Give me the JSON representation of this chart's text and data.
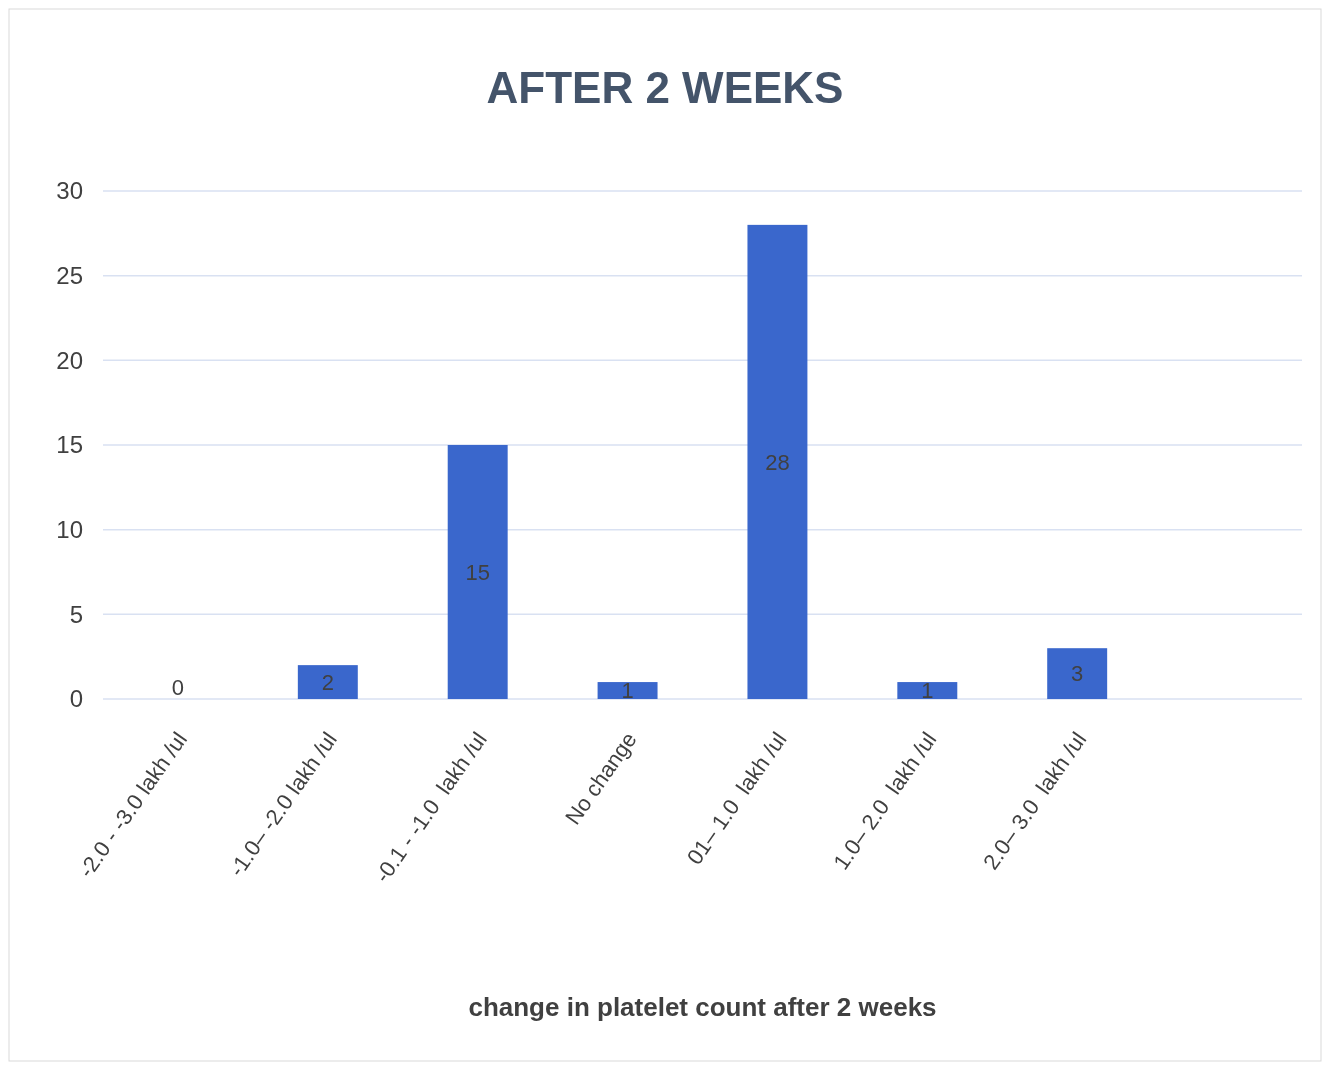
{
  "chart_data": {
    "type": "bar",
    "title": "AFTER 2 WEEKS",
    "xlabel": "change in platelet count after 2 weeks",
    "categories": [
      "-2.0 - -3.0 lakh /ul",
      "-1.0– -2.0 lakh /ul",
      "-0.1 - -1.0  lakh /ul",
      "No change",
      "01– 1.0  lakh /ul",
      "1.0– 2.0  lakh /ul",
      "2.0– 3.0  lakh /ul",
      null
    ],
    "values": [
      0,
      2,
      15,
      1,
      28,
      1,
      3,
      null
    ],
    "color": "#3a67cc",
    "ylim": [
      0,
      30
    ],
    "yticks": [
      0,
      5,
      10,
      15,
      20,
      25,
      30
    ],
    "grid": "y",
    "data_labels": true
  }
}
